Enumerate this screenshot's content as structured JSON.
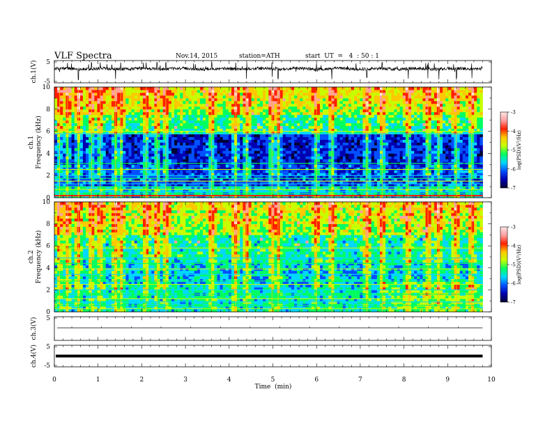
{
  "header": {
    "title": "VLF Spectra",
    "date": "Nov.14, 2015",
    "station": "station=ATH",
    "start": "start  UT  =   4  : 50 : 1"
  },
  "chart_data": [
    {
      "type": "line",
      "name": "ch1-waveform",
      "ylabel": "ch.1(V)",
      "ylim": [
        -5,
        5
      ],
      "yticks": [
        "5",
        "-5"
      ],
      "xlim": [
        0,
        10
      ],
      "baseline": 1.5,
      "spike_times_min": [
        0.12,
        0.3,
        0.55,
        0.85,
        1.05,
        1.4,
        1.52,
        2.1,
        2.35,
        2.55,
        3.6,
        4.15,
        4.4,
        4.98,
        5.12,
        6.0,
        6.35,
        7.15,
        7.5,
        8.1,
        8.55,
        8.8,
        9.2,
        9.55
      ]
    },
    {
      "type": "heatmap",
      "name": "ch1-spectrogram",
      "ylabel_top": "ch.1",
      "ylabel": "Frequency  (kHz)",
      "ylim": [
        0,
        10
      ],
      "yticks": [
        "0",
        "2",
        "4",
        "6",
        "8",
        "10"
      ],
      "xlim": [
        0,
        10
      ],
      "data_end_min": 9.8,
      "colorbar": {
        "label": "log(PSD)(V²/Hz)",
        "range": [
          -7,
          -3
        ],
        "ticks": [
          "-3",
          "-4",
          "-5",
          "-6",
          "-7"
        ]
      },
      "lines_khz": [
        0.15,
        0.35,
        0.55,
        0.75,
        1.0,
        1.25,
        1.5,
        1.75,
        2.0,
        2.55,
        3.1,
        5.8,
        6.0
      ],
      "bursts_min": [
        0.12,
        0.3,
        0.55,
        0.85,
        1.05,
        1.4,
        1.52,
        2.1,
        2.35,
        2.55,
        3.6,
        4.15,
        4.4,
        4.98,
        5.12,
        6.0,
        6.35,
        7.15,
        7.5,
        8.1,
        8.55,
        8.8,
        9.2,
        9.55
      ]
    },
    {
      "type": "heatmap",
      "name": "ch2-spectrogram",
      "ylabel_top": "ch.2",
      "ylabel": "Frequency  (kHz)",
      "ylim": [
        0,
        10
      ],
      "yticks": [
        "0",
        "2",
        "4",
        "6",
        "8",
        "10"
      ],
      "xlim": [
        0,
        10
      ],
      "data_end_min": 9.8,
      "colorbar": {
        "label": "log(PSD)(V²/Hz)",
        "range": [
          -7,
          -3
        ],
        "ticks": [
          "-3",
          "-4",
          "-5",
          "-6",
          "-7"
        ]
      },
      "lines_khz": [
        0.3,
        0.6,
        0.9,
        1.2,
        1.6,
        2.0,
        2.5,
        2.8,
        3.4,
        3.9,
        4.4,
        4.9,
        5.8
      ],
      "bursts_min": [
        0.12,
        0.3,
        0.55,
        0.85,
        1.05,
        1.4,
        1.52,
        2.1,
        2.35,
        2.55,
        3.6,
        4.15,
        4.4,
        4.98,
        5.12,
        6.0,
        6.35,
        7.15,
        7.5,
        8.1,
        8.55,
        8.8,
        9.2,
        9.55
      ]
    },
    {
      "type": "line",
      "name": "ch3-waveform",
      "ylabel": "ch.3(V)",
      "ylim": [
        -5,
        5
      ],
      "yticks": [
        "5"
      ],
      "xlim": [
        0,
        10
      ],
      "baseline": 0
    },
    {
      "type": "line",
      "name": "ch4-waveform",
      "ylabel": "ch.4(V)",
      "ylim": [
        -5,
        5
      ],
      "yticks": [
        "5",
        "-5"
      ],
      "xlim": [
        0,
        10
      ],
      "baseline": 0
    }
  ],
  "xaxis": {
    "label": "Time  (min)",
    "ticks": [
      "0",
      "1",
      "2",
      "3",
      "4",
      "5",
      "6",
      "7",
      "8",
      "9",
      "10"
    ]
  },
  "colors": {
    "scale": [
      "#000033",
      "#0000b0",
      "#0050ff",
      "#00d8ff",
      "#00ff60",
      "#c8ff00",
      "#ffc800",
      "#ff2000",
      "#ffa0a0",
      "#ffe6e6"
    ]
  }
}
